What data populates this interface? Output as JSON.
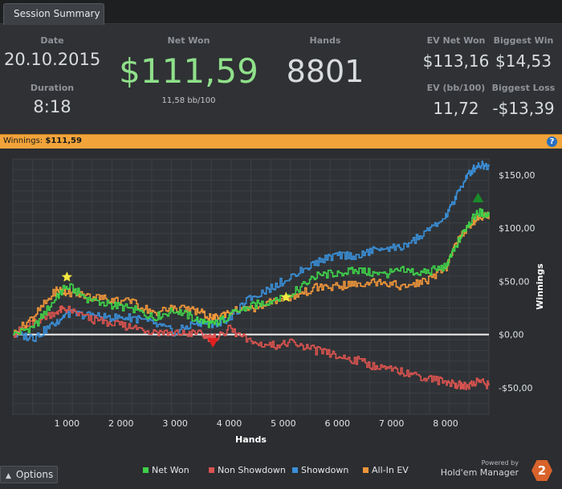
{
  "tab": {
    "label": "Session Summary"
  },
  "stats": {
    "date_label": "Date",
    "date": "20.10.2015",
    "duration_label": "Duration",
    "duration": "8:18",
    "net_won_label": "Net Won",
    "net_won": "$111,59",
    "net_won_sub": "11,58 bb/100",
    "hands_label": "Hands",
    "hands": "8801",
    "ev_net_won_label": "EV Net Won",
    "ev_net_won": "$113,16",
    "biggest_win_label": "Biggest Win",
    "biggest_win": "$14,53",
    "ev_bb_label": "EV (bb/100)",
    "ev_bb": "11,72",
    "biggest_loss_label": "Biggest Loss",
    "biggest_loss": "-$13,39"
  },
  "winnings_bar": {
    "label": "Winnings:",
    "value": "$111,59",
    "help": "?"
  },
  "colors": {
    "net_won": "#3fd14a",
    "non_showdown": "#d9534f",
    "showdown": "#3a8fd8",
    "all_in_ev": "#f0963a",
    "accent_orange": "#f2a43a",
    "net_won_text": "#8fe08a"
  },
  "chart_data": {
    "type": "line",
    "title": "",
    "xlabel": "Hands",
    "ylabel": "Winnings",
    "xlim": [
      0,
      8801
    ],
    "ylim": [
      -75,
      165
    ],
    "x_ticks": [
      1000,
      2000,
      3000,
      4000,
      5000,
      6000,
      7000,
      8000
    ],
    "x_tick_labels": [
      "1 000",
      "2 000",
      "3 000",
      "4 000",
      "5 000",
      "6 000",
      "7 000",
      "8 000"
    ],
    "y_ticks": [
      -50,
      0,
      50,
      100,
      150
    ],
    "y_tick_labels": [
      "-$50,00",
      "$0,00",
      "$50,00",
      "$100,00",
      "$150,00"
    ],
    "grid": true,
    "legend_position": "bottom",
    "x": [
      0,
      400,
      800,
      1000,
      1400,
      1800,
      2200,
      2600,
      3000,
      3400,
      3700,
      4000,
      4400,
      4800,
      5200,
      5600,
      6000,
      6400,
      6800,
      7200,
      7600,
      8000,
      8200,
      8400,
      8600,
      8801
    ],
    "series": [
      {
        "name": "Net Won",
        "color": "#3fd14a",
        "values": [
          0,
          8,
          35,
          46,
          33,
          28,
          24,
          16,
          23,
          14,
          9,
          18,
          27,
          32,
          40,
          55,
          58,
          60,
          56,
          60,
          58,
          64,
          84,
          103,
          115,
          112
        ]
      },
      {
        "name": "Non Showdown",
        "color": "#d9534f",
        "values": [
          0,
          12,
          22,
          24,
          15,
          10,
          7,
          3,
          1,
          1,
          -4,
          5,
          -8,
          -10,
          -8,
          -15,
          -20,
          -25,
          -32,
          -35,
          -40,
          -45,
          -47,
          -49,
          -43,
          -48
        ]
      },
      {
        "name": "Showdown",
        "color": "#3a8fd8",
        "values": [
          0,
          -3,
          12,
          20,
          18,
          16,
          16,
          10,
          2,
          12,
          10,
          15,
          35,
          45,
          56,
          68,
          75,
          74,
          82,
          82,
          95,
          110,
          131,
          150,
          160,
          158
        ]
      },
      {
        "name": "All-In EV",
        "color": "#f0963a",
        "values": [
          0,
          18,
          42,
          40,
          36,
          33,
          30,
          21,
          25,
          22,
          15,
          22,
          24,
          32,
          36,
          44,
          45,
          48,
          50,
          45,
          50,
          61,
          87,
          100,
          111,
          112
        ]
      }
    ],
    "markers": [
      {
        "type": "star",
        "color": "#f5e642",
        "x": 1000,
        "y": 54
      },
      {
        "type": "star",
        "color": "#f5e642",
        "x": 5050,
        "y": 35
      },
      {
        "type": "triangle-down",
        "color": "#e02020",
        "x": 3700,
        "y": -7
      },
      {
        "type": "triangle-up",
        "color": "#1a8a2a",
        "x": 8600,
        "y": 128
      }
    ]
  },
  "options": {
    "label": "Options"
  },
  "brand": {
    "powered_by": "Powered by",
    "name": "Hold'em Manager",
    "logo": "2"
  }
}
